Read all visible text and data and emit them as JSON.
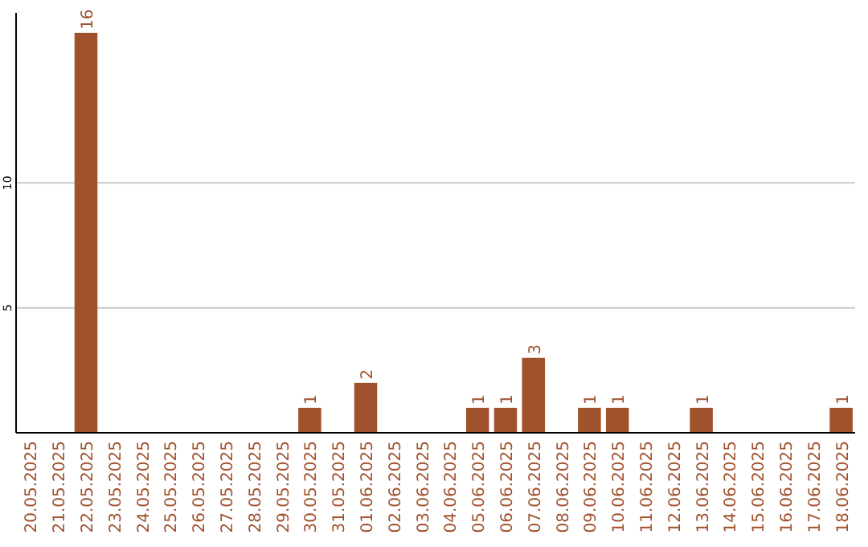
{
  "chart_data": {
    "type": "bar",
    "categories": [
      "20.05.2025",
      "21.05.2025",
      "22.05.2025",
      "23.05.2025",
      "24.05.2025",
      "25.05.2025",
      "26.05.2025",
      "27.05.2025",
      "28.05.2025",
      "29.05.2025",
      "30.05.2025",
      "31.05.2025",
      "01.06.2025",
      "02.06.2025",
      "03.06.2025",
      "04.06.2025",
      "05.06.2025",
      "06.06.2025",
      "07.06.2025",
      "08.06.2025",
      "09.06.2025",
      "10.06.2025",
      "11.06.2025",
      "12.06.2025",
      "13.06.2025",
      "14.06.2025",
      "15.06.2025",
      "16.06.2025",
      "17.06.2025",
      "18.06.2025"
    ],
    "values": [
      0,
      0,
      16,
      0,
      0,
      0,
      0,
      0,
      0,
      0,
      1,
      0,
      2,
      0,
      0,
      0,
      1,
      1,
      3,
      0,
      1,
      1,
      0,
      0,
      1,
      0,
      0,
      0,
      0,
      1
    ],
    "value_labels": [
      null,
      null,
      "16",
      null,
      null,
      null,
      null,
      null,
      null,
      null,
      "1",
      null,
      "2",
      null,
      null,
      null,
      "1",
      "1",
      "3",
      null,
      "1",
      "1",
      null,
      null,
      "1",
      null,
      null,
      null,
      null,
      "1"
    ],
    "color": "#a0522d",
    "ylim": [
      0,
      16.8
    ],
    "yticks": [
      5,
      10
    ],
    "grid": "y"
  }
}
